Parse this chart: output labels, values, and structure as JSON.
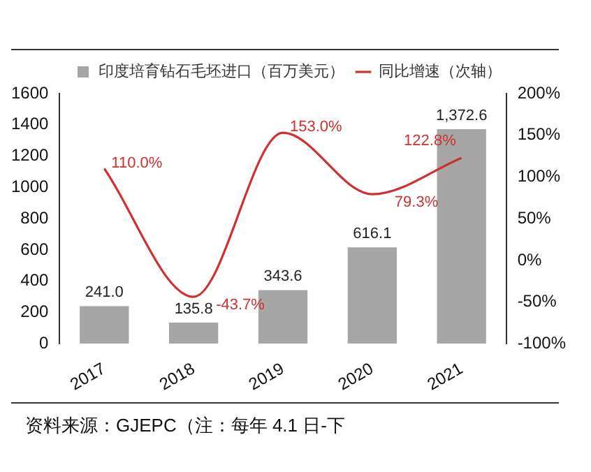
{
  "chart_data": {
    "type": "bar",
    "categories": [
      "2017",
      "2018",
      "2019",
      "2020",
      "2021"
    ],
    "series": [
      {
        "name": "印度培育钻石毛坯进口（百万美元）",
        "color": "#a6a6a6",
        "values": [
          241.0,
          135.8,
          343.6,
          616.1,
          1372.6
        ],
        "value_labels": [
          "241.0",
          "135.8",
          "343.6",
          "616.1",
          "1,372.6"
        ]
      },
      {
        "name": "同比增速（次轴）",
        "type": "line",
        "axis": "y2",
        "color": "#d03030",
        "values": [
          110.0,
          -43.7,
          153.0,
          79.3,
          122.8
        ],
        "value_labels": [
          "110.0%",
          "-43.7%",
          "153.0%",
          "79.3%",
          "122.8%"
        ]
      }
    ],
    "ylim": [
      0,
      1600
    ],
    "yticks": [
      0,
      200,
      400,
      600,
      800,
      1000,
      1200,
      1400,
      1600
    ],
    "y2lim": [
      -100,
      200
    ],
    "y2ticks": [
      {
        "value": -100,
        "label": "-100%"
      },
      {
        "value": -50,
        "label": "-50%"
      },
      {
        "value": 0,
        "label": "0%"
      },
      {
        "value": 50,
        "label": "50%"
      },
      {
        "value": 100,
        "label": "100%"
      },
      {
        "value": 150,
        "label": "150%"
      },
      {
        "value": 200,
        "label": "200%"
      }
    ],
    "grid": false,
    "legend": "top",
    "marker": "none",
    "line_style": "solid",
    "annotations": [
      "资料来源：GJEPC（注：每年 4.1 日-下"
    ]
  }
}
